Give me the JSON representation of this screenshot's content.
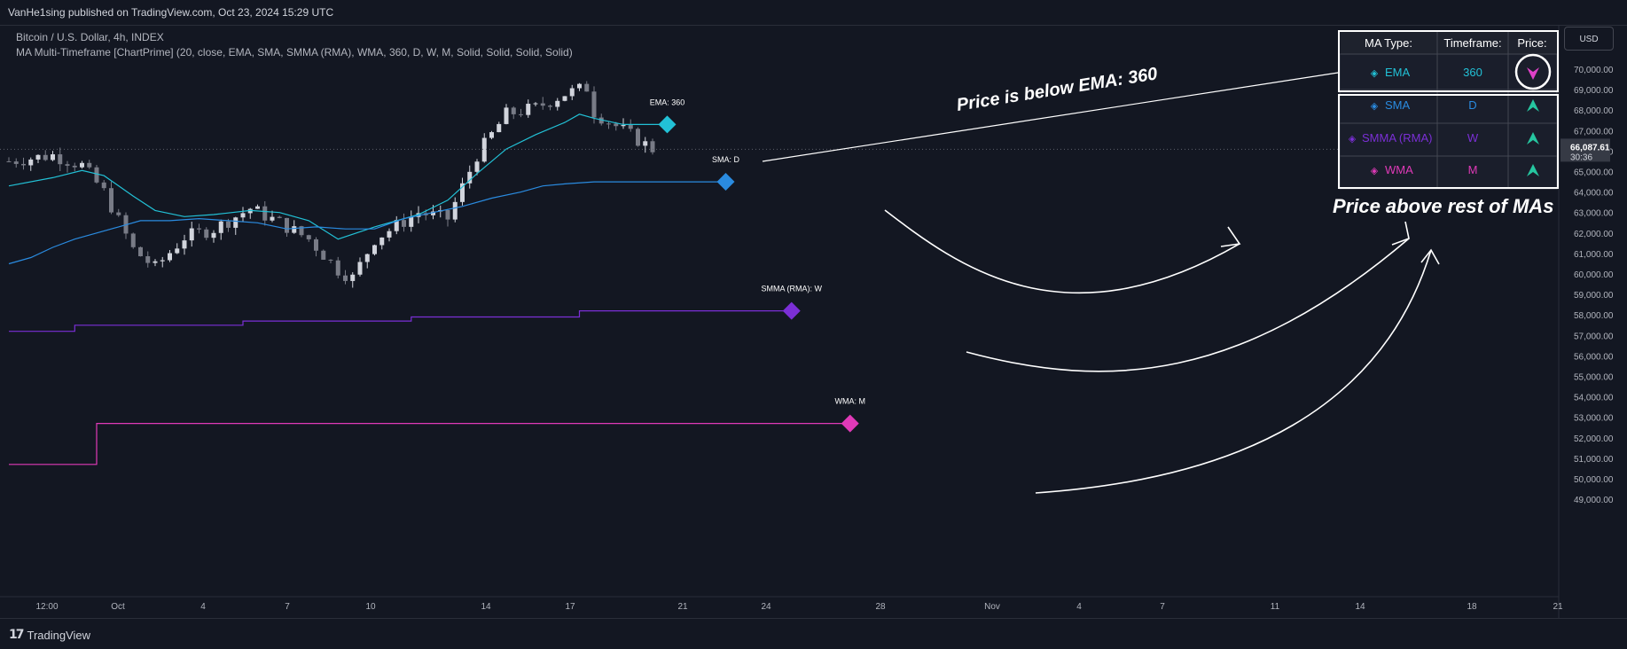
{
  "header": {
    "publish_text": "VanHe1sing published on TradingView.com, Oct 23, 2024 15:29 UTC",
    "symbol_line": "Bitcoin / U.S. Dollar, 4h, INDEX",
    "indicator_line": "MA Multi-Timeframe [ChartPrime] (20, close, EMA, SMA, SMMA (RMA), WMA, 360, D, W, M, Solid, Solid, Solid, Solid)"
  },
  "currency_button": "USD",
  "footer": {
    "brand": "TradingView"
  },
  "ma_table": {
    "headers": [
      "MA Type:",
      "Timeframe:",
      "Price:"
    ],
    "rows": [
      {
        "type": "EMA",
        "timeframe": "360",
        "direction": "down",
        "color": "#22c1d6"
      },
      {
        "type": "SMA",
        "timeframe": "D",
        "direction": "up",
        "color": "#2a8be0"
      },
      {
        "type": "SMMA (RMA)",
        "timeframe": "W",
        "direction": "up",
        "color": "#7b2fd6"
      },
      {
        "type": "WMA",
        "timeframe": "M",
        "direction": "up",
        "color": "#e03ab8"
      }
    ],
    "up_color": "#26c6a0",
    "down_color": "#e040c8"
  },
  "annotations": {
    "ema_note": "Price is below EMA: 360",
    "rest_note": "Price above rest of MAs"
  },
  "chart_data": {
    "type": "line",
    "y_axis_ticks": [
      "70,000.00",
      "69,000.00",
      "68,000.00",
      "67,000.00",
      "66,000.00",
      "65,000.00",
      "64,000.00",
      "63,000.00",
      "62,000.00",
      "61,000.00",
      "60,000.00",
      "59,000.00",
      "58,000.00",
      "57,000.00",
      "56,000.00",
      "55,000.00",
      "54,000.00",
      "53,000.00",
      "52,000.00",
      "51,000.00",
      "50,000.00",
      "49,000.00"
    ],
    "ylim": [
      48500,
      71500
    ],
    "x_axis_ticks": [
      "12:00",
      "Oct",
      "4",
      "7",
      "10",
      "14",
      "17",
      "21",
      "24",
      "28",
      "Nov",
      "4",
      "7",
      "11",
      "14",
      "18",
      "21"
    ],
    "current_price": "66,087.61",
    "countdown": "30:36",
    "series": [
      {
        "name": "EMA: 360",
        "color": "#22c1d6",
        "points": [
          [
            0,
            64300
          ],
          [
            6,
            64700
          ],
          [
            10,
            65050
          ],
          [
            13,
            64800
          ],
          [
            17,
            63800
          ],
          [
            20,
            63100
          ],
          [
            24,
            62800
          ],
          [
            28,
            62900
          ],
          [
            33,
            63100
          ],
          [
            37,
            63000
          ],
          [
            41,
            62600
          ],
          [
            45,
            61700
          ],
          [
            50,
            62300
          ],
          [
            56,
            62900
          ],
          [
            60,
            63600
          ],
          [
            64,
            64900
          ],
          [
            68,
            66100
          ],
          [
            72,
            66800
          ],
          [
            76,
            67400
          ],
          [
            78,
            67800
          ],
          [
            80,
            67600
          ],
          [
            84,
            67300
          ],
          [
            90,
            67300
          ]
        ]
      },
      {
        "name": "SMA: D",
        "color": "#2a8be0",
        "points": [
          [
            0,
            60500
          ],
          [
            3,
            60800
          ],
          [
            6,
            61300
          ],
          [
            9,
            61700
          ],
          [
            12,
            62000
          ],
          [
            15,
            62300
          ],
          [
            18,
            62600
          ],
          [
            22,
            62600
          ],
          [
            26,
            62700
          ],
          [
            30,
            62600
          ],
          [
            34,
            62500
          ],
          [
            38,
            62200
          ],
          [
            42,
            62300
          ],
          [
            46,
            62200
          ],
          [
            50,
            62200
          ],
          [
            54,
            62700
          ],
          [
            58,
            63000
          ],
          [
            62,
            63300
          ],
          [
            66,
            63700
          ],
          [
            70,
            64000
          ],
          [
            73,
            64300
          ],
          [
            76,
            64400
          ],
          [
            80,
            64500
          ],
          [
            84,
            64500
          ],
          [
            98,
            64500
          ]
        ]
      },
      {
        "name": "SMMA (RMA): W",
        "color": "#7b2fd6",
        "points": [
          [
            0,
            57200
          ],
          [
            9,
            57200
          ],
          [
            9,
            57500
          ],
          [
            32,
            57500
          ],
          [
            32,
            57700
          ],
          [
            55,
            57700
          ],
          [
            55,
            57900
          ],
          [
            78,
            57900
          ],
          [
            78,
            58200
          ],
          [
            107,
            58200
          ]
        ]
      },
      {
        "name": "WMA: M",
        "color": "#e03ab8",
        "points": [
          [
            0,
            50700
          ],
          [
            12,
            50700
          ],
          [
            12,
            52700
          ],
          [
            115,
            52700
          ]
        ]
      }
    ]
  }
}
